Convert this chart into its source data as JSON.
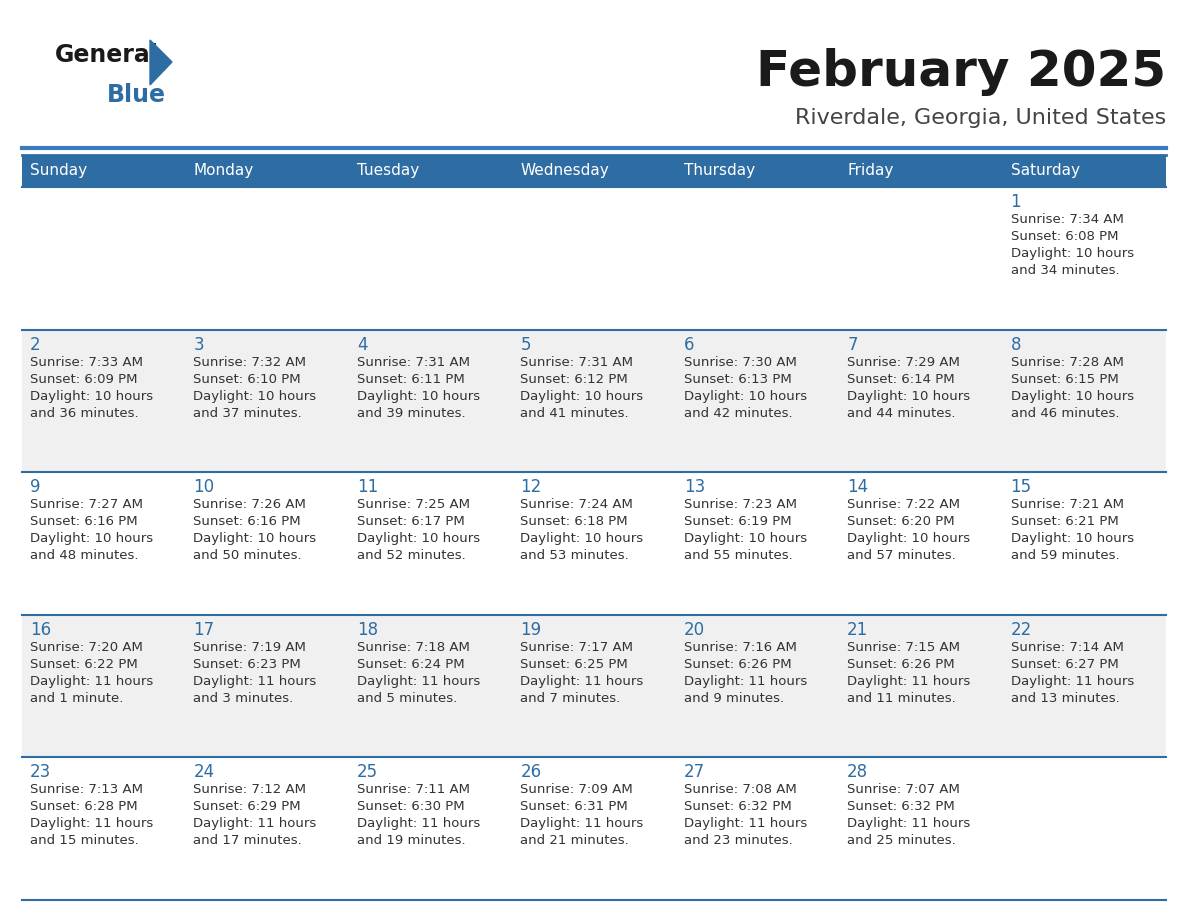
{
  "title": "February 2025",
  "subtitle": "Riverdale, Georgia, United States",
  "header_bg": "#2E6DA4",
  "header_text_color": "#FFFFFF",
  "row_bg_odd": "#FFFFFF",
  "row_bg_even": "#F0F0F0",
  "day_number_color": "#2E6DA4",
  "info_text_color": "#333333",
  "border_color": "#2E6DA4",
  "days_of_week": [
    "Sunday",
    "Monday",
    "Tuesday",
    "Wednesday",
    "Thursday",
    "Friday",
    "Saturday"
  ],
  "calendar_data": [
    [
      null,
      null,
      null,
      null,
      null,
      null,
      {
        "day": 1,
        "sunrise": "7:34 AM",
        "sunset": "6:08 PM",
        "daylight": "10 hours and 34 minutes."
      }
    ],
    [
      {
        "day": 2,
        "sunrise": "7:33 AM",
        "sunset": "6:09 PM",
        "daylight": "10 hours and 36 minutes."
      },
      {
        "day": 3,
        "sunrise": "7:32 AM",
        "sunset": "6:10 PM",
        "daylight": "10 hours and 37 minutes."
      },
      {
        "day": 4,
        "sunrise": "7:31 AM",
        "sunset": "6:11 PM",
        "daylight": "10 hours and 39 minutes."
      },
      {
        "day": 5,
        "sunrise": "7:31 AM",
        "sunset": "6:12 PM",
        "daylight": "10 hours and 41 minutes."
      },
      {
        "day": 6,
        "sunrise": "7:30 AM",
        "sunset": "6:13 PM",
        "daylight": "10 hours and 42 minutes."
      },
      {
        "day": 7,
        "sunrise": "7:29 AM",
        "sunset": "6:14 PM",
        "daylight": "10 hours and 44 minutes."
      },
      {
        "day": 8,
        "sunrise": "7:28 AM",
        "sunset": "6:15 PM",
        "daylight": "10 hours and 46 minutes."
      }
    ],
    [
      {
        "day": 9,
        "sunrise": "7:27 AM",
        "sunset": "6:16 PM",
        "daylight": "10 hours and 48 minutes."
      },
      {
        "day": 10,
        "sunrise": "7:26 AM",
        "sunset": "6:16 PM",
        "daylight": "10 hours and 50 minutes."
      },
      {
        "day": 11,
        "sunrise": "7:25 AM",
        "sunset": "6:17 PM",
        "daylight": "10 hours and 52 minutes."
      },
      {
        "day": 12,
        "sunrise": "7:24 AM",
        "sunset": "6:18 PM",
        "daylight": "10 hours and 53 minutes."
      },
      {
        "day": 13,
        "sunrise": "7:23 AM",
        "sunset": "6:19 PM",
        "daylight": "10 hours and 55 minutes."
      },
      {
        "day": 14,
        "sunrise": "7:22 AM",
        "sunset": "6:20 PM",
        "daylight": "10 hours and 57 minutes."
      },
      {
        "day": 15,
        "sunrise": "7:21 AM",
        "sunset": "6:21 PM",
        "daylight": "10 hours and 59 minutes."
      }
    ],
    [
      {
        "day": 16,
        "sunrise": "7:20 AM",
        "sunset": "6:22 PM",
        "daylight": "11 hours and 1 minute."
      },
      {
        "day": 17,
        "sunrise": "7:19 AM",
        "sunset": "6:23 PM",
        "daylight": "11 hours and 3 minutes."
      },
      {
        "day": 18,
        "sunrise": "7:18 AM",
        "sunset": "6:24 PM",
        "daylight": "11 hours and 5 minutes."
      },
      {
        "day": 19,
        "sunrise": "7:17 AM",
        "sunset": "6:25 PM",
        "daylight": "11 hours and 7 minutes."
      },
      {
        "day": 20,
        "sunrise": "7:16 AM",
        "sunset": "6:26 PM",
        "daylight": "11 hours and 9 minutes."
      },
      {
        "day": 21,
        "sunrise": "7:15 AM",
        "sunset": "6:26 PM",
        "daylight": "11 hours and 11 minutes."
      },
      {
        "day": 22,
        "sunrise": "7:14 AM",
        "sunset": "6:27 PM",
        "daylight": "11 hours and 13 minutes."
      }
    ],
    [
      {
        "day": 23,
        "sunrise": "7:13 AM",
        "sunset": "6:28 PM",
        "daylight": "11 hours and 15 minutes."
      },
      {
        "day": 24,
        "sunrise": "7:12 AM",
        "sunset": "6:29 PM",
        "daylight": "11 hours and 17 minutes."
      },
      {
        "day": 25,
        "sunrise": "7:11 AM",
        "sunset": "6:30 PM",
        "daylight": "11 hours and 19 minutes."
      },
      {
        "day": 26,
        "sunrise": "7:09 AM",
        "sunset": "6:31 PM",
        "daylight": "11 hours and 21 minutes."
      },
      {
        "day": 27,
        "sunrise": "7:08 AM",
        "sunset": "6:32 PM",
        "daylight": "11 hours and 23 minutes."
      },
      {
        "day": 28,
        "sunrise": "7:07 AM",
        "sunset": "6:32 PM",
        "daylight": "11 hours and 25 minutes."
      },
      null
    ]
  ]
}
